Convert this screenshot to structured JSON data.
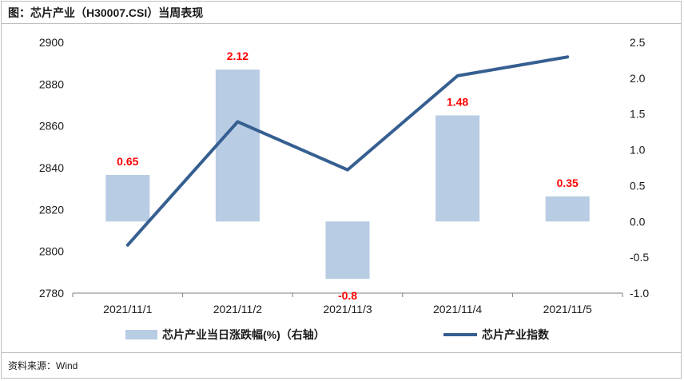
{
  "header": {
    "title": "图：芯片产业（H30007.CSI）当周表现"
  },
  "footer": {
    "source": "资料来源：Wind"
  },
  "colors": {
    "bar": "#b8cce4",
    "line": "#365f91",
    "label": "#ff0000"
  },
  "chart_data": {
    "type": "bar+line",
    "categories": [
      "2021/11/1",
      "2021/11/2",
      "2021/11/3",
      "2021/11/4",
      "2021/11/5"
    ],
    "series": [
      {
        "name": "芯片产业当日涨跌幅(%)（右轴）",
        "type": "bar",
        "axis": "right",
        "values": [
          0.65,
          2.12,
          -0.8,
          1.48,
          0.35
        ],
        "labels": [
          "0.65",
          "2.12",
          "-0.8",
          "1.48",
          "0.35"
        ]
      },
      {
        "name": "芯片产业指数",
        "type": "line",
        "axis": "left",
        "values": [
          2803,
          2862,
          2839,
          2884,
          2893
        ]
      }
    ],
    "left_axis": {
      "ylim": [
        2780,
        2900
      ],
      "ticks": [
        "2780",
        "2800",
        "2820",
        "2840",
        "2860",
        "2880",
        "2900"
      ]
    },
    "right_axis": {
      "ylim": [
        -1.0,
        2.5
      ],
      "ticks": [
        "-1.0",
        "-0.5",
        "0.0",
        "0.5",
        "1.0",
        "1.5",
        "2.0",
        "2.5"
      ]
    },
    "legend_position": "bottom",
    "grid": false
  }
}
